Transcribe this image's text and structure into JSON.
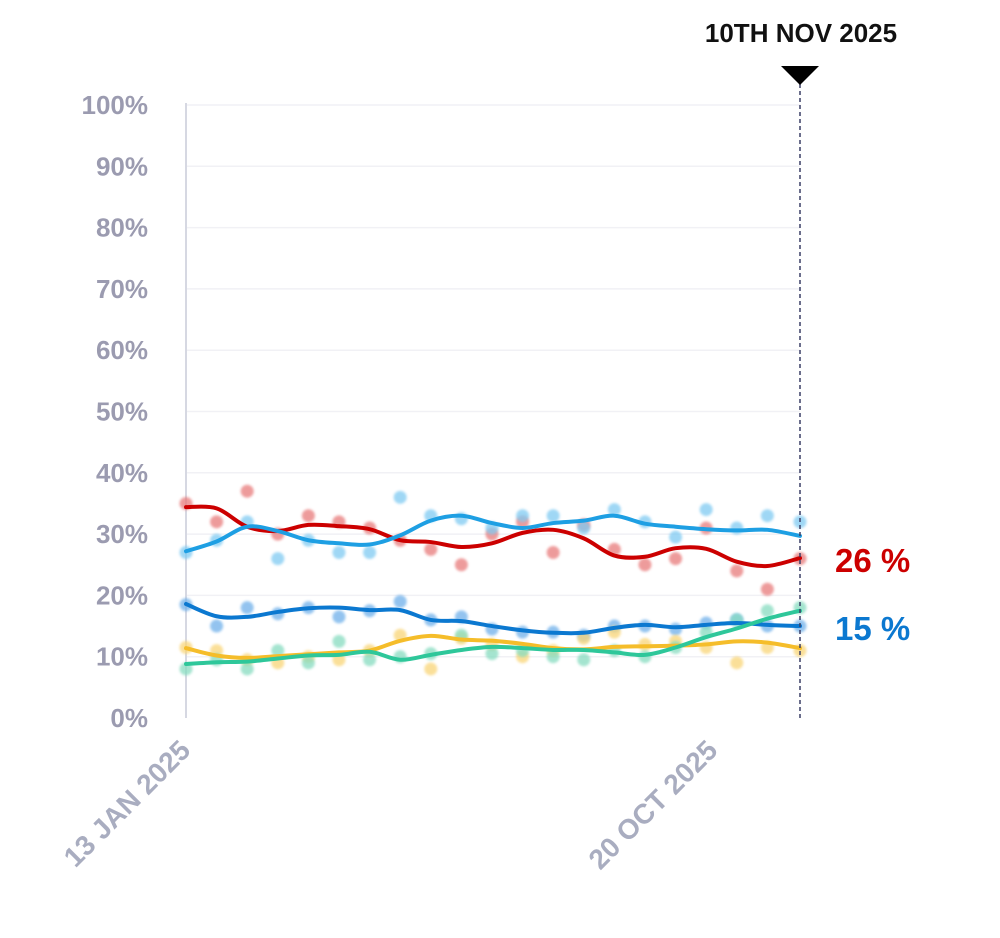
{
  "chart_data": {
    "type": "line",
    "title": "",
    "xlabel": "",
    "ylabel": "",
    "ylim": [
      0,
      100
    ],
    "y_ticks": [
      "0%",
      "10%",
      "20%",
      "30%",
      "40%",
      "50%",
      "60%",
      "70%",
      "80%",
      "90%",
      "100%"
    ],
    "x_range": [
      "2025-01-13",
      "2025-11-10"
    ],
    "x_tick_labels": [
      {
        "date": "2025-01-13",
        "label": "13 JAN 2025"
      },
      {
        "date": "2025-10-20",
        "label": "20 OCT 2025"
      }
    ],
    "grid": true,
    "marker": {
      "date": "2025-11-10",
      "label": "10TH NOV 2025"
    },
    "x": [
      "2025-01-13",
      "2025-01-28",
      "2025-02-12",
      "2025-02-27",
      "2025-03-14",
      "2025-03-29",
      "2025-04-13",
      "2025-04-28",
      "2025-05-13",
      "2025-05-28",
      "2025-06-12",
      "2025-06-27",
      "2025-07-12",
      "2025-07-27",
      "2025-08-11",
      "2025-08-26",
      "2025-09-10",
      "2025-09-25",
      "2025-10-10",
      "2025-10-25",
      "2025-11-10"
    ],
    "series": [
      {
        "color": "#cc0000",
        "point_color": "#e87a7a",
        "end_label": "26 %",
        "trend": [
          34.4,
          34.2,
          31.2,
          30.5,
          31.5,
          31.3,
          30.8,
          29,
          28.7,
          27.9,
          28.5,
          30.2,
          30.7,
          29.3,
          26.5,
          26.3,
          27.7,
          27.6,
          25.5,
          24.8,
          26.1
        ],
        "points": [
          35,
          32,
          37,
          30,
          33,
          32,
          31,
          29,
          27.5,
          25,
          30,
          32,
          27,
          31.5,
          27.5,
          25,
          26,
          31,
          24,
          21,
          26
        ]
      },
      {
        "color": "#1e9fe3",
        "point_color": "#7fcaf2",
        "end_label": "",
        "trend": [
          27.2,
          28.8,
          31.2,
          30.5,
          29,
          28.5,
          28.3,
          29.8,
          32.2,
          33,
          31.8,
          31,
          31.8,
          32.2,
          33,
          31.7,
          31.2,
          30.8,
          30.6,
          30.7,
          29.7
        ],
        "points": [
          27,
          29,
          32,
          26,
          29,
          27,
          27,
          36,
          33,
          32.5,
          31,
          33,
          33,
          31,
          34,
          32,
          29.5,
          34,
          31,
          33,
          32
        ]
      },
      {
        "color": "#0b78d0",
        "point_color": "#6fb0ea",
        "end_label": "15 %",
        "trend": [
          18.6,
          16.6,
          16.5,
          17.3,
          17.9,
          18,
          17.6,
          17.6,
          16,
          15.8,
          15,
          14.3,
          13.9,
          13.9,
          14.7,
          15.2,
          14.8,
          15.2,
          15.5,
          15.2,
          15
        ],
        "points": [
          18.5,
          15,
          18,
          17,
          18,
          16.5,
          17.5,
          19,
          16,
          16.5,
          14.5,
          14,
          14,
          13.5,
          15,
          15,
          14.5,
          15.5,
          16,
          15,
          15
        ]
      },
      {
        "color": "#f5bd2a",
        "point_color": "#f9d577",
        "end_label": "",
        "trend": [
          11.4,
          10.2,
          9.8,
          10.1,
          10.4,
          10.7,
          11,
          12.6,
          13.4,
          12.8,
          12.6,
          12.1,
          11.4,
          11.2,
          11.6,
          11.7,
          11.8,
          12,
          12.5,
          12.3,
          11.4
        ],
        "points": [
          11.5,
          11,
          9.5,
          9,
          10,
          9.5,
          11,
          13.5,
          8,
          13,
          12,
          10,
          11,
          13,
          14,
          12,
          12.5,
          11.5,
          9,
          11.5,
          11
        ]
      },
      {
        "color": "#2ec79a",
        "point_color": "#86dcc0",
        "end_label": "",
        "trend": [
          8.8,
          9.1,
          9.2,
          9.7,
          10.2,
          10.3,
          10.8,
          9.5,
          10.3,
          11.1,
          11.6,
          11.4,
          11.1,
          11.1,
          10.7,
          10.3,
          11.5,
          13.2,
          14.6,
          16.2,
          17.5
        ],
        "points": [
          8,
          9.5,
          8,
          11,
          9,
          12.5,
          9.5,
          10,
          10.5,
          13.5,
          10.5,
          11,
          10,
          9.5,
          11,
          10,
          11.5,
          14,
          16,
          17.5,
          18
        ]
      }
    ]
  }
}
